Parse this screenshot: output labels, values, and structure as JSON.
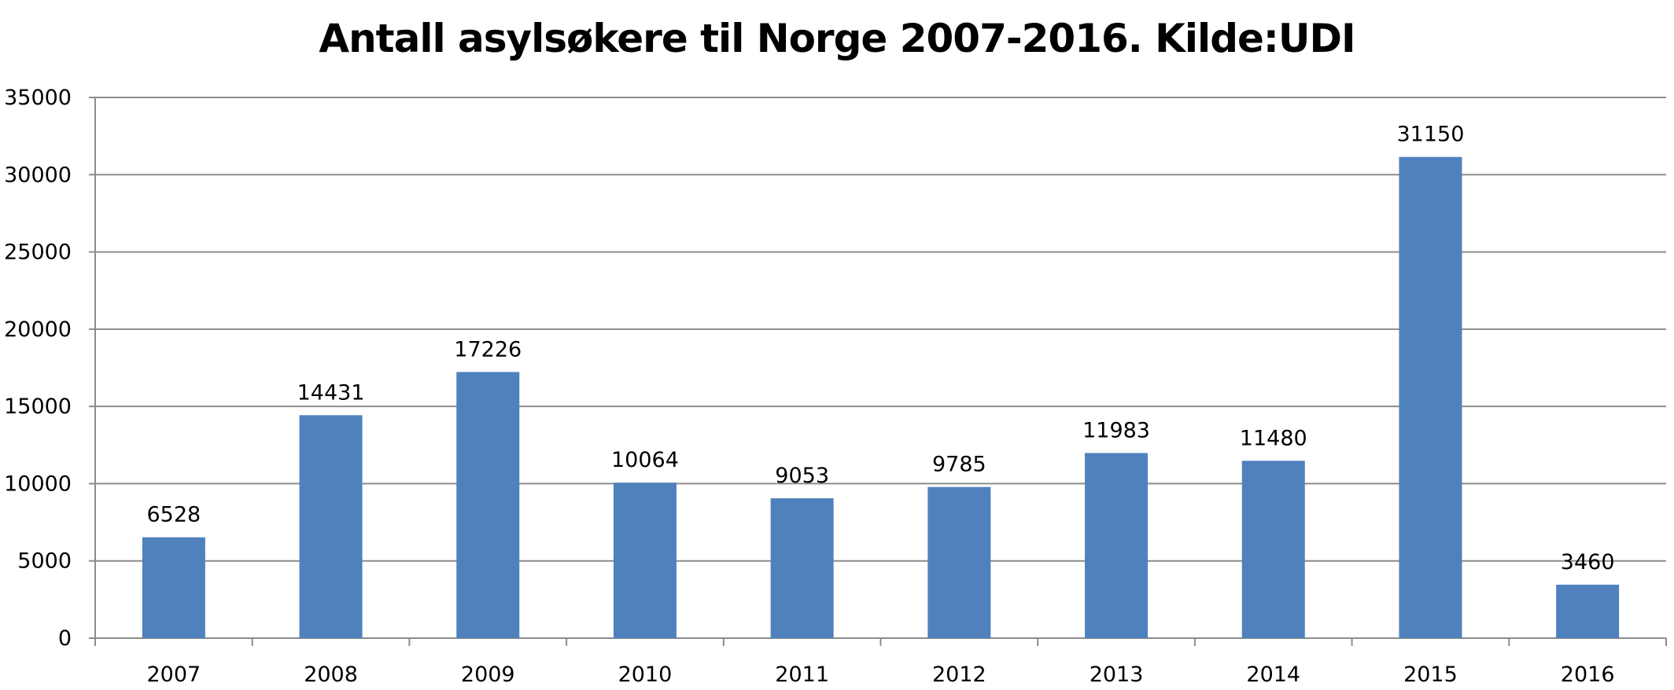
{
  "chart_data": {
    "type": "bar",
    "title": "Antall asylsøkere til Norge 2007-2016.  Kilde:UDI",
    "xlabel": "",
    "ylabel": "",
    "categories": [
      "2007",
      "2008",
      "2009",
      "2010",
      "2011",
      "2012",
      "2013",
      "2014",
      "2015",
      "2016"
    ],
    "values": [
      6528,
      14431,
      17226,
      10064,
      9053,
      9785,
      11983,
      11480,
      31150,
      3460
    ],
    "data_labels": [
      "6528",
      "14431",
      "17226",
      "10064",
      "9053",
      "9785",
      "11983",
      "11480",
      "31150",
      "3460"
    ],
    "ylim": [
      0,
      35000
    ],
    "yticks": [
      0,
      5000,
      10000,
      15000,
      20000,
      25000,
      30000,
      35000
    ],
    "ytick_labels": [
      "0",
      "5000",
      "10000",
      "15000",
      "20000",
      "25000",
      "30000",
      "35000"
    ],
    "grid": true,
    "legend": "none",
    "bar_color": "#4f81bd",
    "grid_color": "#8c8c8c"
  }
}
